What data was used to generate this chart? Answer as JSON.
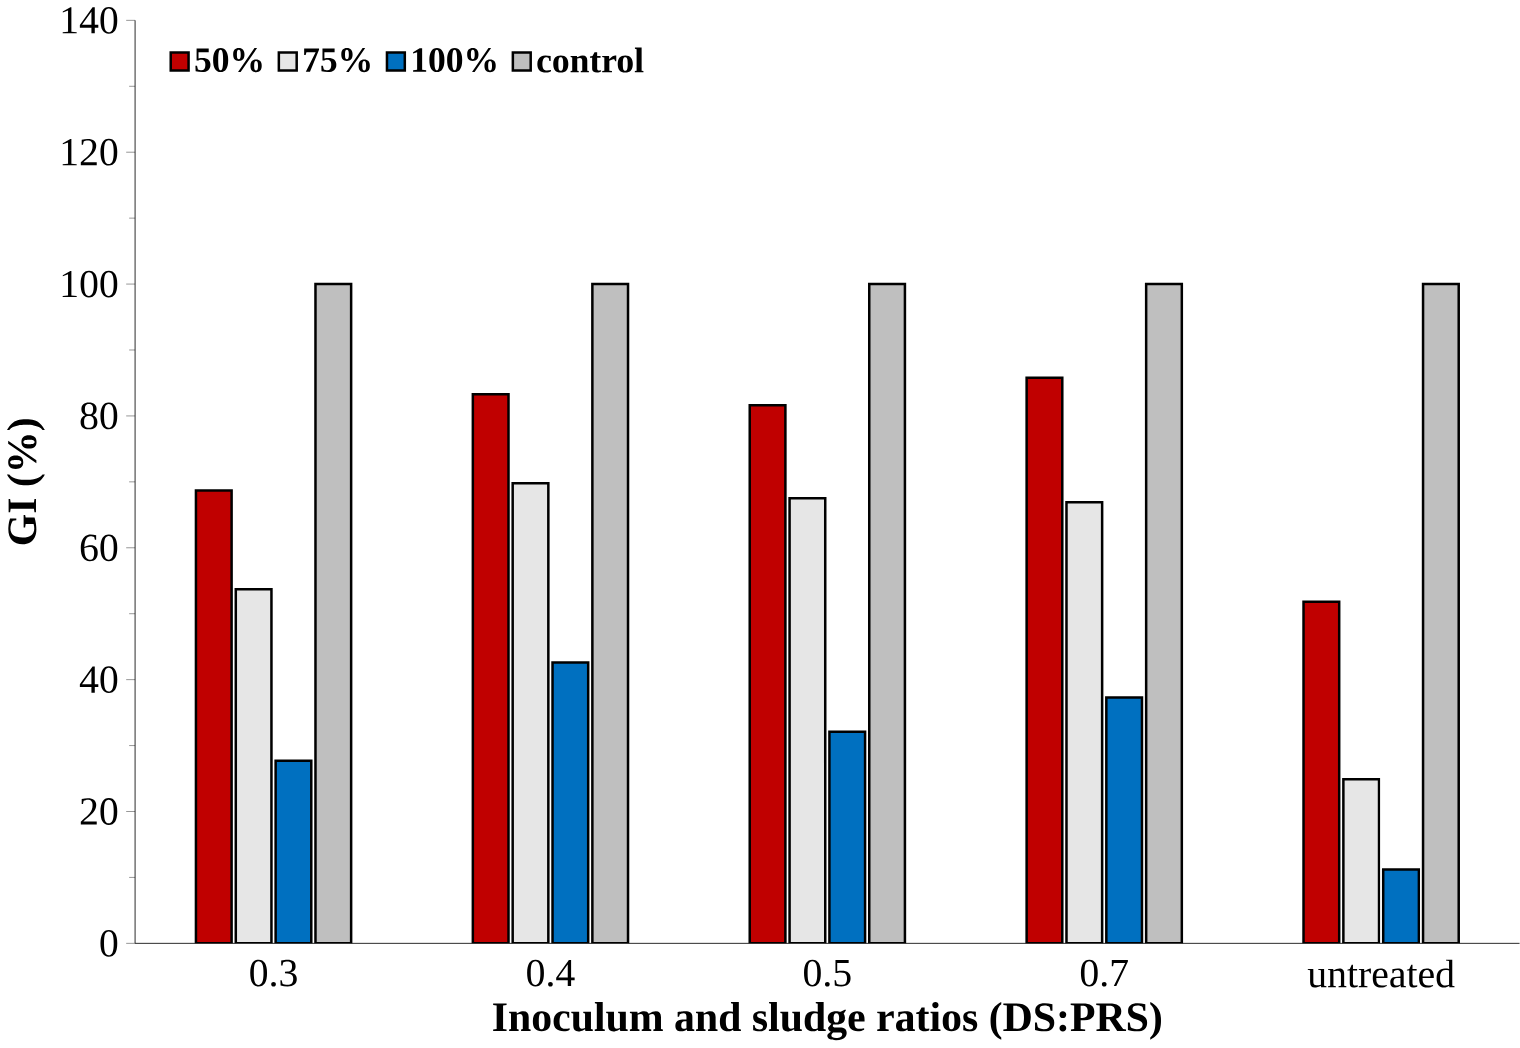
{
  "chart_data": {
    "type": "bar",
    "xlabel": "Inoculum and sludge ratios (DS:PRS)",
    "ylabel": "GI (%)",
    "categories": [
      "0.3",
      "0.4",
      "0.5",
      "0.7",
      "untreated"
    ],
    "series": [
      {
        "name": "50%",
        "color": "#c00000",
        "values": [
          68.7,
          83.3,
          81.6,
          85.8,
          51.8
        ]
      },
      {
        "name": "75%",
        "color": "#e6e6e6",
        "values": [
          53.7,
          69.8,
          67.5,
          66.9,
          24.9
        ]
      },
      {
        "name": "100%",
        "color": "#0070c0",
        "values": [
          27.7,
          42.6,
          32.1,
          37.3,
          11.2
        ]
      },
      {
        "name": "control",
        "color": "#bfbfbf",
        "values": [
          100,
          100,
          100,
          100,
          100
        ]
      }
    ],
    "ylim": [
      0,
      140
    ],
    "yticks": [
      0,
      20,
      40,
      60,
      80,
      100,
      120,
      140
    ],
    "grid": false,
    "legend": "top left"
  }
}
